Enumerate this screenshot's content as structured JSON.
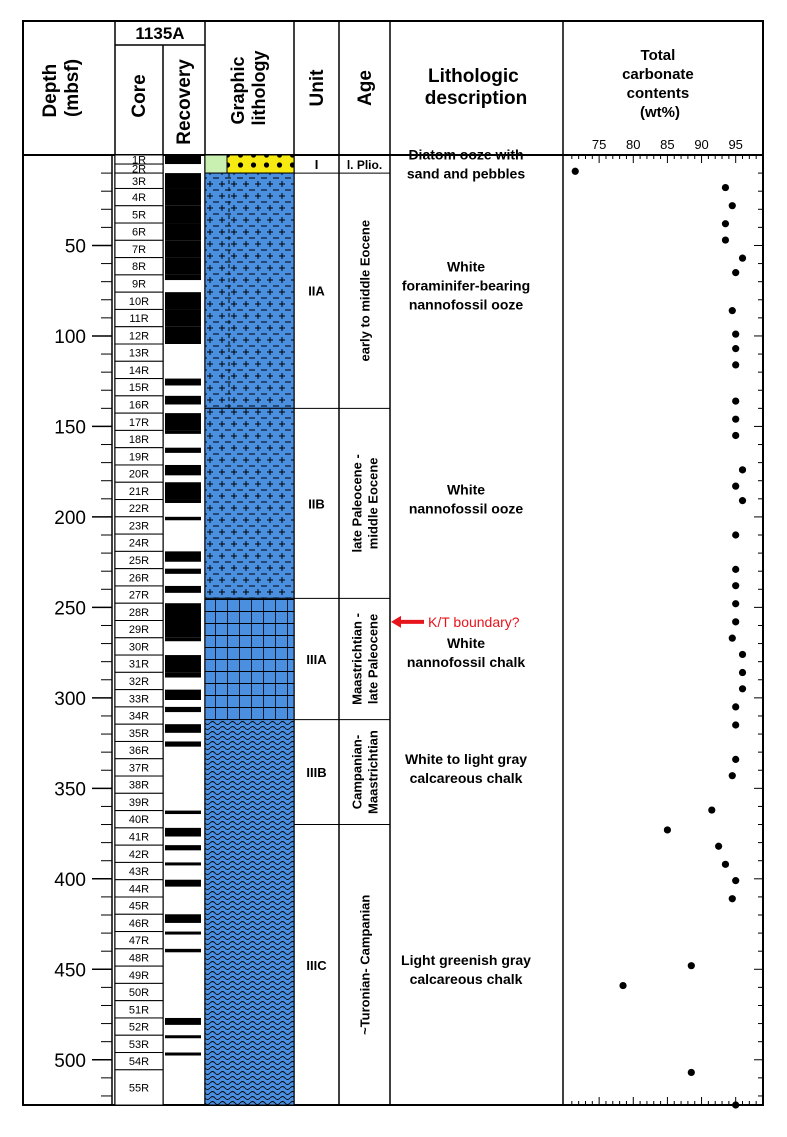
{
  "site": "1135A",
  "headers": {
    "depth": [
      "Depth",
      "(mbsf)"
    ],
    "core": "Core",
    "recovery": "Recovery",
    "graphic": [
      "Graphic",
      "lithology"
    ],
    "unit": "Unit",
    "age": "Age",
    "lith_desc": [
      "Lithologic",
      "description"
    ],
    "carbonate": [
      "Total",
      "carbonate",
      "contents",
      "(wt%)"
    ]
  },
  "depth_ticks": [
    "50",
    "100",
    "150",
    "200",
    "250",
    "300",
    "350",
    "400",
    "450",
    "500"
  ],
  "cores": [
    "1R",
    "2R",
    "3R",
    "4R",
    "5R",
    "6R",
    "7R",
    "8R",
    "9R",
    "10R",
    "11R",
    "12R",
    "13R",
    "14R",
    "15R",
    "16R",
    "17R",
    "18R",
    "19R",
    "20R",
    "21R",
    "22R",
    "23R",
    "24R",
    "25R",
    "26R",
    "27R",
    "28R",
    "29R",
    "30R",
    "31R",
    "32R",
    "33R",
    "34R",
    "35R",
    "36R",
    "37R",
    "38R",
    "39R",
    "40R",
    "41R",
    "42R",
    "43R",
    "44R",
    "45R",
    "46R",
    "47R",
    "48R",
    "49R",
    "50R",
    "51R",
    "52R",
    "53R",
    "54R",
    "55R"
  ],
  "units": [
    {
      "label": "I",
      "top": 0,
      "bottom": 10
    },
    {
      "label": "IIA",
      "top": 10,
      "bottom": 140
    },
    {
      "label": "IIB",
      "top": 140,
      "bottom": 245
    },
    {
      "label": "IIIA",
      "top": 245,
      "bottom": 312
    },
    {
      "label": "IIIB",
      "top": 312,
      "bottom": 370
    },
    {
      "label": "IIIC",
      "top": 370,
      "bottom": 525
    }
  ],
  "ages": [
    {
      "label": "l. Plio.",
      "top": 0,
      "bottom": 10,
      "vertical": false
    },
    {
      "lines": [
        "early to middle Eocene"
      ],
      "top": 10,
      "bottom": 140,
      "vertical": true
    },
    {
      "lines": [
        "late Paleocene -",
        "middle Eocene"
      ],
      "top": 140,
      "bottom": 245,
      "vertical": true
    },
    {
      "lines": [
        "Maastrichtian -",
        "late Paleocene"
      ],
      "top": 245,
      "bottom": 312,
      "vertical": true
    },
    {
      "lines": [
        "Campanian-",
        "Maastrichtian"
      ],
      "top": 312,
      "bottom": 370,
      "vertical": true
    },
    {
      "lines": [
        "~Turonian- Campanian"
      ],
      "top": 370,
      "bottom": 525,
      "vertical": true
    }
  ],
  "descriptions": [
    {
      "lines": [
        "Diatom ooze with",
        "sand and pebbles"
      ],
      "depth": 5
    },
    {
      "lines": [
        "White",
        "foraminifer-bearing",
        "nannofossil ooze"
      ],
      "depth": 72
    },
    {
      "lines": [
        "White",
        "nannofossil ooze"
      ],
      "depth": 190
    },
    {
      "lines": [
        "White",
        "nannofossil chalk"
      ],
      "depth": 275
    },
    {
      "lines": [
        "White to light gray",
        "calcareous chalk"
      ],
      "depth": 339
    },
    {
      "lines": [
        "Light greenish gray",
        "calcareous chalk"
      ],
      "depth": 450
    }
  ],
  "annotation": {
    "label": "K/T boundary?",
    "depth": 258,
    "color": "#e8141b"
  },
  "colors": {
    "blue": "#4a8fe0",
    "yellow": "#f6ea10",
    "green": "#c9f0b0",
    "dark": "#000000"
  },
  "chart_data": {
    "type": "scatter",
    "title": "Total carbonate contents (wt%)",
    "xlabel": "Total carbonate contents (wt%)",
    "ylabel": "Depth (mbsf)",
    "xlim": [
      70,
      99
    ],
    "ylim": [
      0,
      525
    ],
    "x_ticks": [
      "75",
      "80",
      "85",
      "90",
      "95"
    ],
    "points": [
      {
        "x": 71.5,
        "y": 9
      },
      {
        "x": 93.5,
        "y": 18
      },
      {
        "x": 94.5,
        "y": 28
      },
      {
        "x": 93.5,
        "y": 38
      },
      {
        "x": 93.5,
        "y": 47
      },
      {
        "x": 96.0,
        "y": 57
      },
      {
        "x": 95.0,
        "y": 65
      },
      {
        "x": 94.5,
        "y": 86
      },
      {
        "x": 95.0,
        "y": 99
      },
      {
        "x": 95.0,
        "y": 107
      },
      {
        "x": 95.0,
        "y": 116
      },
      {
        "x": 95.0,
        "y": 136
      },
      {
        "x": 95.0,
        "y": 146
      },
      {
        "x": 95.0,
        "y": 155
      },
      {
        "x": 96.0,
        "y": 174
      },
      {
        "x": 95.0,
        "y": 183
      },
      {
        "x": 96.0,
        "y": 191
      },
      {
        "x": 95.0,
        "y": 210
      },
      {
        "x": 95.0,
        "y": 229
      },
      {
        "x": 95.0,
        "y": 238
      },
      {
        "x": 95.0,
        "y": 248
      },
      {
        "x": 95.0,
        "y": 258
      },
      {
        "x": 94.5,
        "y": 267
      },
      {
        "x": 96.0,
        "y": 276
      },
      {
        "x": 96.0,
        "y": 286
      },
      {
        "x": 96.0,
        "y": 295
      },
      {
        "x": 95.0,
        "y": 305
      },
      {
        "x": 95.0,
        "y": 315
      },
      {
        "x": 95.0,
        "y": 334
      },
      {
        "x": 94.5,
        "y": 343
      },
      {
        "x": 91.5,
        "y": 362
      },
      {
        "x": 85.0,
        "y": 373
      },
      {
        "x": 92.5,
        "y": 382
      },
      {
        "x": 93.5,
        "y": 392
      },
      {
        "x": 95.0,
        "y": 401
      },
      {
        "x": 94.5,
        "y": 411
      },
      {
        "x": 88.5,
        "y": 448
      },
      {
        "x": 78.5,
        "y": 459
      },
      {
        "x": 88.5,
        "y": 507
      },
      {
        "x": 95.0,
        "y": 525
      }
    ]
  }
}
